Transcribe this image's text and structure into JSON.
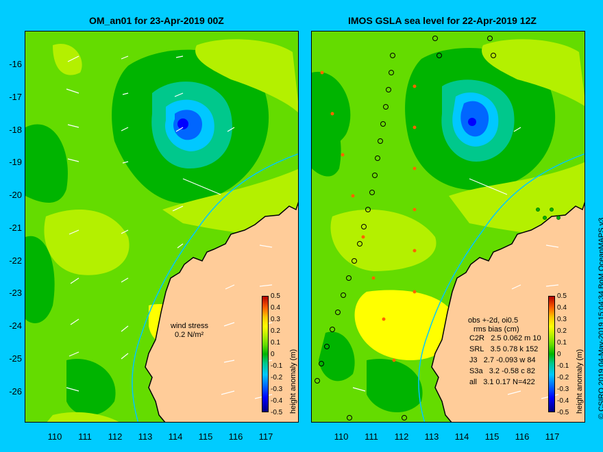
{
  "left_panel": {
    "title": "OM_an01 for 23-Apr-2019 00Z",
    "wind_label": "wind stress",
    "wind_scale": "0.2 N/m²"
  },
  "right_panel": {
    "title": "IMOS GSLA sea level  for 22-Apr-2019 12Z",
    "obs_header": "obs +-2d, oi0.5",
    "bias_header": "rms bias (cm)",
    "stats": [
      {
        "sat": "C2R",
        "values": "2.5  0.062 m 10"
      },
      {
        "sat": "SRL",
        "values": "3.5  0.78 k 152"
      },
      {
        "sat": "J3",
        "values": "2.7  -0.093 w 84"
      },
      {
        "sat": "S3a",
        "values": "3.2  -0.58 c 82"
      },
      {
        "sat": "all",
        "values": "3.1  0.17 N=422"
      }
    ]
  },
  "y_ticks": [
    "-16",
    "-17",
    "-18",
    "-19",
    "-20",
    "-21",
    "-22",
    "-23",
    "-24",
    "-25",
    "-26"
  ],
  "x_ticks": [
    "110",
    "111",
    "112",
    "113",
    "114",
    "115",
    "116",
    "117"
  ],
  "colorbar": {
    "title": "height anomaly (m)",
    "ticks": [
      "0.5",
      "0.4",
      "0.3",
      "0.2",
      "0.1",
      "0",
      "-0.1",
      "-0.2",
      "-0.3",
      "-0.4",
      "-0.5"
    ]
  },
  "credit": "© CSIRO 2019  04-May-2019 15:04:34 BoM OceanMAPS v3",
  "colors": {
    "background": "#00ccff",
    "sea_green": "#64dc00",
    "land": "#ffcc99",
    "dark_green": "#00b400",
    "yellow": "#ffff00"
  }
}
